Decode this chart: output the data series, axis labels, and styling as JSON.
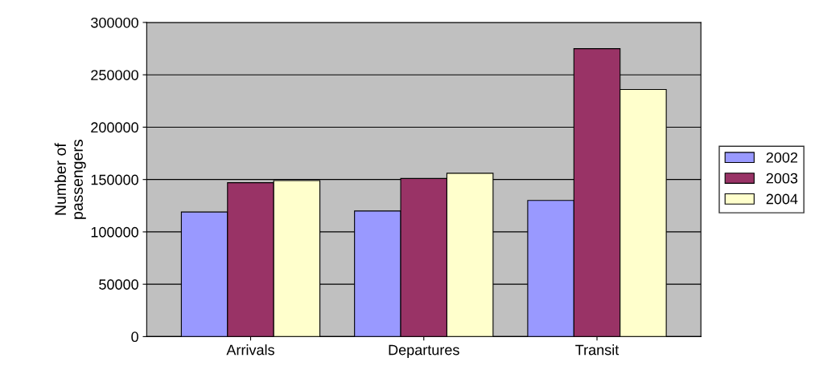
{
  "chart_data": {
    "type": "bar",
    "ylabel": "Number of\npassengers",
    "categories": [
      "Arrivals",
      "Departures",
      "Transit"
    ],
    "series": [
      {
        "name": "2002",
        "color": "#9999ff",
        "values": [
          119000,
          120000,
          130000
        ]
      },
      {
        "name": "2003",
        "color": "#993366",
        "values": [
          147000,
          151000,
          275000
        ]
      },
      {
        "name": "2004",
        "color": "#ffffcc",
        "values": [
          149000,
          156000,
          236000
        ]
      }
    ],
    "ylim": [
      0,
      300000
    ],
    "yticks": [
      0,
      50000,
      100000,
      150000,
      200000,
      250000,
      300000
    ],
    "grid": "y",
    "legend": "right"
  }
}
